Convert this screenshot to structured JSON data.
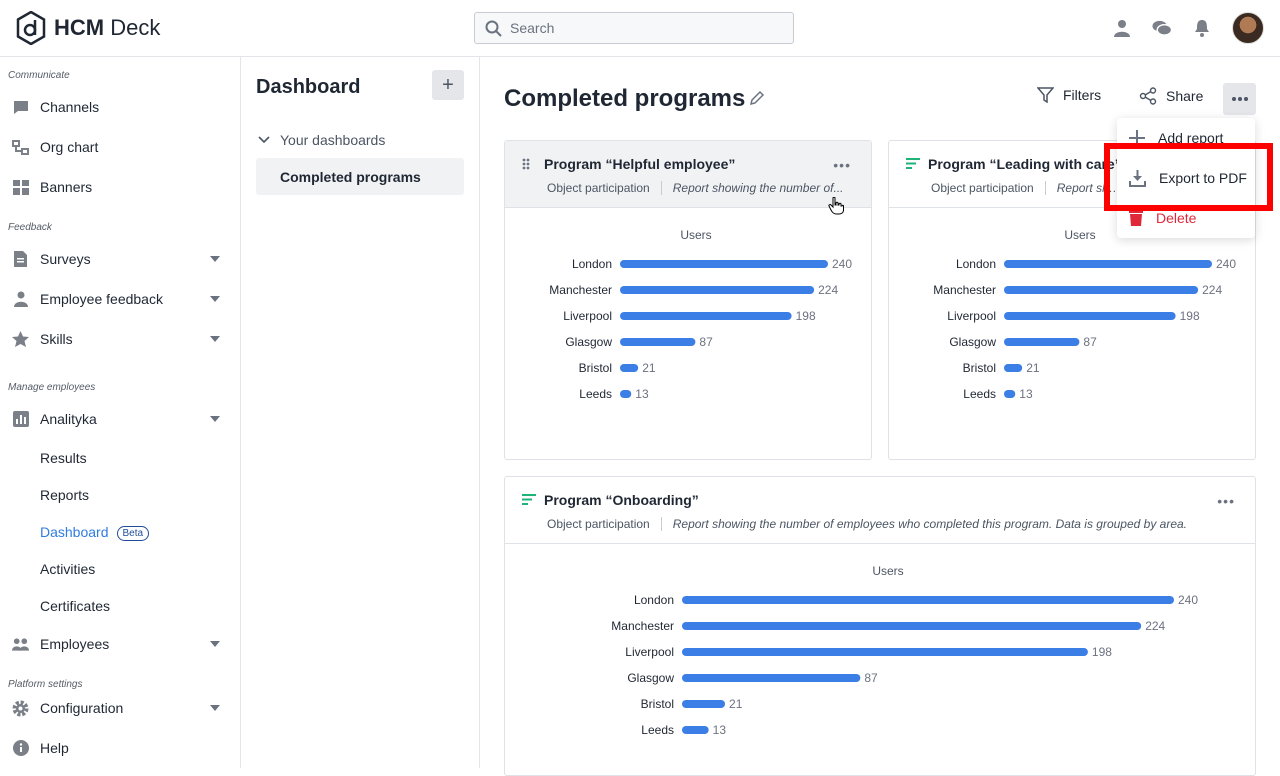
{
  "app": {
    "brand_bold": "HCM",
    "brand_rest": " Deck"
  },
  "search": {
    "placeholder": "Search"
  },
  "sidebar": {
    "sections": {
      "communicate": "Communicate",
      "feedback": "Feedback",
      "manage": "Manage employees",
      "platform": "Platform settings"
    },
    "items": {
      "channels": "Channels",
      "org_chart": "Org chart",
      "banners": "Banners",
      "surveys": "Surveys",
      "employee_feedback": "Employee feedback",
      "skills": "Skills",
      "analityka": "Analityka",
      "employees": "Employees",
      "configuration": "Configuration",
      "help": "Help"
    },
    "sub": {
      "results": "Results",
      "reports": "Reports",
      "dashboard": "Dashboard",
      "beta": "Beta",
      "activities": "Activities",
      "certificates": "Certificates"
    }
  },
  "dash_panel": {
    "title": "Dashboard",
    "add": "+",
    "group": "Your dashboards",
    "item": "Completed programs"
  },
  "main": {
    "title": "Completed programs",
    "filters": "Filters",
    "share": "Share"
  },
  "menu": {
    "add_report": "Add report",
    "export_pdf": "Export to PDF",
    "delete": "Delete"
  },
  "cards": [
    {
      "title": "Program “Helpful employee”",
      "type": "Object participation",
      "desc": "Report showing the number of..."
    },
    {
      "title": "Program “Leading with care”",
      "type": "Object participation",
      "desc": "Report showing the number of..."
    },
    {
      "title": "Program “Onboarding”",
      "type": "Object participation",
      "desc": "Report showing the number of employees who completed this program. Data is grouped by area."
    }
  ],
  "chart_data": [
    {
      "type": "bar",
      "title": "Users",
      "categories": [
        "London",
        "Manchester",
        "Liverpool",
        "Glasgow",
        "Bristol",
        "Leeds"
      ],
      "values": [
        240,
        224,
        198,
        87,
        21,
        13
      ],
      "xlim": [
        0,
        240
      ],
      "color": "#3b7fe6"
    },
    {
      "type": "bar",
      "title": "Users",
      "categories": [
        "London",
        "Manchester",
        "Liverpool",
        "Glasgow",
        "Bristol",
        "Leeds"
      ],
      "values": [
        240,
        224,
        198,
        87,
        21,
        13
      ],
      "xlim": [
        0,
        240
      ],
      "color": "#3b7fe6"
    },
    {
      "type": "bar",
      "title": "Users",
      "categories": [
        "London",
        "Manchester",
        "Liverpool",
        "Glasgow",
        "Bristol",
        "Leeds"
      ],
      "values": [
        240,
        224,
        198,
        87,
        21,
        13
      ],
      "xlim": [
        0,
        240
      ],
      "color": "#3b7fe6"
    }
  ]
}
